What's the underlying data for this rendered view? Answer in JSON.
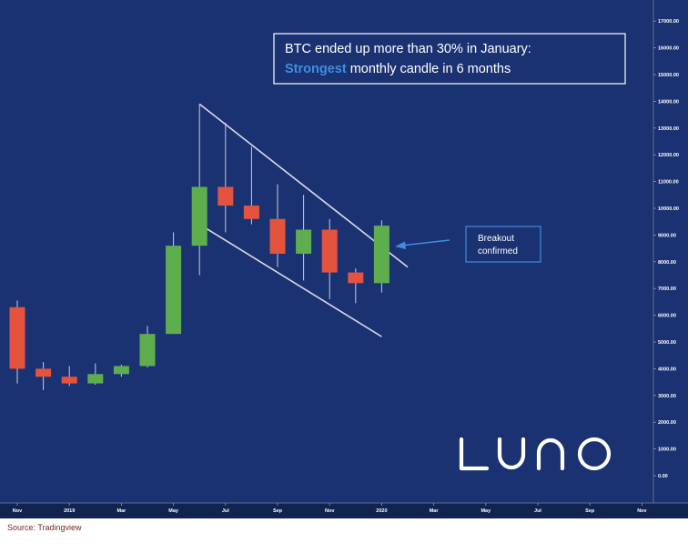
{
  "source": "Source: Tradingview",
  "annotation": {
    "line1": "BTC ended up more than 30% in January:",
    "line2_highlight": "Strongest",
    "line2_rest": " monthly candle in 6 months"
  },
  "breakout": {
    "line1": "Breakout",
    "line2": "confirmed"
  },
  "logo": "LUNO",
  "colors": {
    "background": "#1b3272",
    "up": "#5fae4e",
    "down": "#e4533d",
    "highlight": "#3d8ee0",
    "wick": "#c9cdd8",
    "channel": "#d9dbe3"
  },
  "chart_data": {
    "type": "candlestick",
    "x_axis_labels": [
      "Nov",
      "2019",
      "Mar",
      "May",
      "Jul",
      "Sep",
      "Nov",
      "2020",
      "Mar",
      "May",
      "Jul",
      "Sep",
      "Nov"
    ],
    "y_ticks": [
      "17000.00",
      "16000.00",
      "15000.00",
      "14000.00",
      "13000.00",
      "12000.00",
      "11000.00",
      "10000.00",
      "9000.00",
      "8000.00",
      "7000.00",
      "6000.00",
      "5000.00",
      "4000.00",
      "3000.00",
      "2000.00",
      "1000.00",
      "0.00"
    ],
    "ylim": [
      0,
      17500
    ],
    "candles": [
      {
        "month": "2018-11",
        "open": 6300,
        "high": 6550,
        "low": 3450,
        "close": 4000
      },
      {
        "month": "2018-12",
        "open": 4000,
        "high": 4250,
        "low": 3200,
        "close": 3700
      },
      {
        "month": "2019-01",
        "open": 3700,
        "high": 4100,
        "low": 3350,
        "close": 3450
      },
      {
        "month": "2019-02",
        "open": 3450,
        "high": 4200,
        "low": 3400,
        "close": 3800
      },
      {
        "month": "2019-03",
        "open": 3800,
        "high": 4150,
        "low": 3700,
        "close": 4100
      },
      {
        "month": "2019-04",
        "open": 4100,
        "high": 5600,
        "low": 4050,
        "close": 5300
      },
      {
        "month": "2019-05",
        "open": 5300,
        "high": 9100,
        "low": 5300,
        "close": 8600
      },
      {
        "month": "2019-06",
        "open": 8600,
        "high": 13900,
        "low": 7500,
        "close": 10800
      },
      {
        "month": "2019-07",
        "open": 10800,
        "high": 13200,
        "low": 9100,
        "close": 10100
      },
      {
        "month": "2019-08",
        "open": 10100,
        "high": 12300,
        "low": 9400,
        "close": 9600
      },
      {
        "month": "2019-09",
        "open": 9600,
        "high": 10900,
        "low": 7800,
        "close": 8300
      },
      {
        "month": "2019-10",
        "open": 8300,
        "high": 10500,
        "low": 7300,
        "close": 9200
      },
      {
        "month": "2019-11",
        "open": 9200,
        "high": 9600,
        "low": 6600,
        "close": 7600
      },
      {
        "month": "2019-12",
        "open": 7600,
        "high": 7750,
        "low": 6450,
        "close": 7200
      },
      {
        "month": "2020-01",
        "open": 7200,
        "high": 9550,
        "low": 6850,
        "close": 9350
      }
    ],
    "channel": {
      "upper": [
        {
          "month": "2019-06",
          "value": 13900
        },
        {
          "month": "2020-02",
          "value": 7800
        }
      ],
      "lower": [
        {
          "month": "2019-06",
          "value": 9400
        },
        {
          "month": "2020-01",
          "value": 5200
        }
      ]
    }
  }
}
